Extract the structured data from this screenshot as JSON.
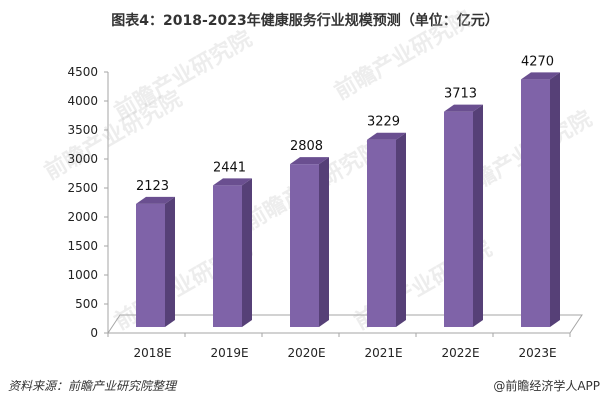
{
  "title": "图表4：2018-2023年健康服务行业规模预测（单位：亿元）",
  "footer": {
    "source": "资料来源：前瞻产业研究院整理",
    "credit": "@前瞻经济学人APP"
  },
  "watermark": "前瞻产业研究院",
  "colors": {
    "bar_front": "#7f63a8",
    "bar_side": "#564077",
    "bar_top": "#6a4f90",
    "axis": "#a6a6a6"
  },
  "chart_data": {
    "type": "bar",
    "title": "图表4：2018-2023年健康服务行业规模预测（单位：亿元）",
    "xlabel": "",
    "ylabel": "",
    "unit": "亿元",
    "categories": [
      "2018E",
      "2019E",
      "2020E",
      "2021E",
      "2022E",
      "2023E"
    ],
    "values": [
      2123,
      2441,
      2808,
      3229,
      3713,
      4270
    ],
    "ylim": [
      0,
      4500
    ],
    "yticks": [
      0,
      500,
      1000,
      1500,
      2000,
      2500,
      3000,
      3500,
      4000,
      4500
    ],
    "grid": false,
    "legend": "none",
    "style": "3d-column",
    "data_labels": true
  }
}
